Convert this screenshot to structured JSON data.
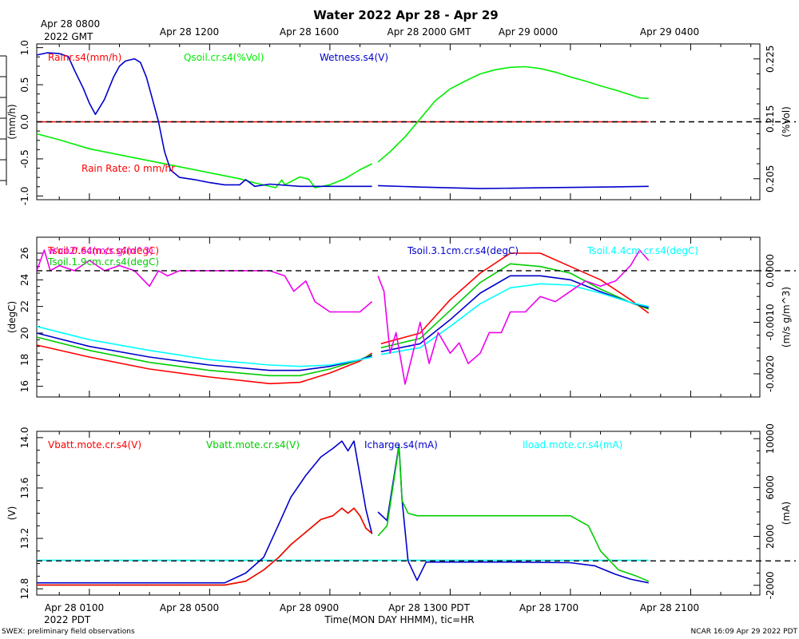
{
  "header": {
    "title": "Water 2022 Apr 28 - Apr 29",
    "gmt_date": "2022 GMT",
    "gmt_ticks": [
      "Apr 28 0800",
      "Apr 28 1200",
      "Apr 28 1600",
      "Apr 28 2000 GMT",
      "Apr 29 0000",
      "Apr 29 0400"
    ]
  },
  "footer": {
    "pdt_date": "2022 PDT",
    "pdt_ticks": [
      "Apr 28 0100",
      "Apr 28 0500",
      "Apr 28 0900",
      "Apr 28 1300 PDT",
      "Apr 28 1700",
      "Apr 28 2100"
    ],
    "xlabel": "Time(MON DAY HHMM), tic=HR",
    "left_note": "SWEX: preliminary field observations",
    "right_note": "NCAR 16:09 Apr 29 2022 PDT"
  },
  "chart_data": [
    {
      "type": "line",
      "panel": "water",
      "x_units": "hours since Apr 28 0000 PDT",
      "xlim": [
        -0.75,
        23.3
      ],
      "left_axis": {
        "label": "(mm/h)",
        "ylim": [
          -1.05,
          1.05
        ],
        "ticks": [
          "1.0",
          "0.5",
          "0.0",
          "-0.5",
          "-1.0"
        ],
        "tick_values": [
          1.0,
          0.5,
          0.0,
          -0.5,
          -1.0
        ]
      },
      "right_axis": {
        "label": "(%Vol)",
        "ylim": [
          0.2015,
          0.2275
        ],
        "ticks": [
          "0.225",
          "0.215",
          "0.205"
        ],
        "tick_values": [
          0.225,
          0.215,
          0.205
        ]
      },
      "legend": [
        "Rainr.s4(mm/h)",
        "Qsoil.cr.s4(%Vol)",
        "Wetness.s4(V)"
      ],
      "annotation": "Rain Rate: 0 mm/hr",
      "reference_line": {
        "axis": "left",
        "value": 0.0
      },
      "series": [
        {
          "name": "Rainr.s4(mm/h)",
          "axis": "left",
          "color": "#ff0000",
          "x": [
            -0.75,
            19.6
          ],
          "y": [
            0.0,
            0.0
          ]
        },
        {
          "name": "Qsoil.cr.s4(%Vol)",
          "axis": "right",
          "color": "#00ee00",
          "x": [
            -0.75,
            0,
            1,
            2,
            3,
            4,
            5,
            6,
            6.5,
            7.2,
            7.4,
            7.5,
            8.0,
            8.3,
            8.5,
            9.0,
            9.5,
            10.0,
            10.4,
            10.6,
            11.0,
            11.5,
            12.0,
            12.5,
            13.0,
            13.5,
            14.0,
            14.5,
            15.0,
            15.5,
            16.0,
            16.5,
            17.0,
            17.5,
            18.0,
            18.5,
            19.0,
            19.3,
            19.6
          ],
          "y": [
            0.2125,
            0.2115,
            0.21,
            0.209,
            0.208,
            0.207,
            0.206,
            0.205,
            0.2043,
            0.2035,
            0.2048,
            0.204,
            0.2053,
            0.2049,
            0.2035,
            0.204,
            0.205,
            0.2065,
            0.2075,
            0.2078,
            0.2095,
            0.212,
            0.215,
            0.218,
            0.22,
            0.2213,
            0.2225,
            0.2232,
            0.2236,
            0.2237,
            0.2234,
            0.2228,
            0.222,
            0.2213,
            0.2205,
            0.2198,
            0.219,
            0.2185,
            0.2184
          ],
          "gap_after_x": 10.4
        },
        {
          "name": "Wetness.s4(V)",
          "axis": "left",
          "color": "#0000cc",
          "x": [
            -0.75,
            -0.4,
            0,
            0.3,
            0.5,
            0.8,
            1.0,
            1.2,
            1.5,
            1.8,
            2.0,
            2.2,
            2.5,
            2.7,
            2.9,
            3.1,
            3.3,
            3.5,
            3.7,
            4.0,
            4.5,
            5.0,
            5.5,
            6.0,
            6.2,
            6.5,
            7.0,
            8.0,
            9.0,
            10.0,
            10.4,
            10.6,
            12.0,
            14.0,
            16.0,
            18.0,
            19.6
          ],
          "y": [
            0.9,
            0.93,
            0.92,
            0.88,
            0.7,
            0.45,
            0.25,
            0.1,
            0.3,
            0.6,
            0.75,
            0.82,
            0.85,
            0.8,
            0.6,
            0.3,
            0.0,
            -0.4,
            -0.65,
            -0.75,
            -0.78,
            -0.82,
            -0.85,
            -0.85,
            -0.78,
            -0.87,
            -0.84,
            -0.87,
            -0.87,
            -0.87,
            -0.87,
            -0.86,
            -0.88,
            -0.9,
            -0.89,
            -0.88,
            -0.87
          ],
          "gap_after_x": 10.4
        }
      ]
    },
    {
      "type": "line",
      "panel": "soil_temperature_flux",
      "x_units": "hours since Apr 28 0000 PDT",
      "xlim": [
        -0.75,
        23.3
      ],
      "left_axis": {
        "label": "(degC)",
        "ylim": [
          15.2,
          27.2
        ],
        "ticks": [
          "26",
          "24",
          "22",
          "20",
          "18",
          "16"
        ],
        "tick_values": [
          26,
          24,
          22,
          20,
          18,
          16
        ]
      },
      "right_axis": {
        "label": "(m/s g/m^3)",
        "ylim": [
          -0.00245,
          0.00065
        ],
        "ticks": [
          "0.0000",
          "-0.0010",
          "-0.0020"
        ],
        "tick_values": [
          0.0,
          -0.001,
          -0.002
        ]
      },
      "legend": [
        "Tsoil.0.6cm.cr.s4(degC)",
        "Tsoil.1.9cm.cr.s4(degC)",
        "Tsoil.3.1cm.cr.s4(degC)",
        "Tsoil.4.4cm.cr.s4(degC)",
        "w'co2'.s4(m/s g/m^3)"
      ],
      "reference_line": {
        "axis": "right",
        "value": 0.0
      },
      "series": [
        {
          "name": "Tsoil.0.6cm.cr.s4(degC)",
          "axis": "left",
          "color": "#ff0000",
          "x": [
            -0.75,
            1,
            3,
            5,
            7,
            8,
            9,
            10,
            10.4,
            10.7,
            12,
            13,
            14,
            15,
            16,
            17,
            18,
            19,
            19.6
          ],
          "y": [
            19.1,
            18.2,
            17.3,
            16.7,
            16.2,
            16.3,
            17.0,
            17.9,
            18.5,
            19.2,
            20.0,
            22.5,
            24.5,
            26.0,
            26.0,
            25.0,
            24.0,
            22.5,
            21.5
          ],
          "gap_after_x": 10.4
        },
        {
          "name": "Tsoil.1.9cm.cr.s4(degC)",
          "axis": "left",
          "color": "#00cc00",
          "x": [
            -0.75,
            1,
            3,
            5,
            7,
            8,
            9,
            10,
            10.4,
            10.7,
            12,
            13,
            14,
            15,
            16,
            17,
            18,
            19,
            19.6
          ],
          "y": [
            19.7,
            18.7,
            17.8,
            17.2,
            16.8,
            16.8,
            17.3,
            18.0,
            18.4,
            18.9,
            19.6,
            21.7,
            23.8,
            25.2,
            25.0,
            24.5,
            23.3,
            22.3,
            21.8
          ],
          "gap_after_x": 10.4
        },
        {
          "name": "Tsoil.3.1cm.cr.s4(degC)",
          "axis": "left",
          "color": "#0000cc",
          "x": [
            -0.75,
            1,
            3,
            5,
            7,
            8,
            9,
            10,
            10.4,
            10.7,
            12,
            13,
            14,
            15,
            16,
            17,
            18,
            19,
            19.6
          ],
          "y": [
            20.0,
            19.0,
            18.2,
            17.6,
            17.2,
            17.2,
            17.5,
            18.0,
            18.3,
            18.6,
            19.2,
            21.0,
            23.0,
            24.3,
            24.3,
            24.0,
            23.1,
            22.3,
            21.9
          ],
          "gap_after_x": 10.4
        },
        {
          "name": "Tsoil.4.4cm.cr.s4(degC)",
          "axis": "left",
          "color": "#00ffff",
          "x": [
            -0.75,
            1,
            3,
            5,
            7,
            8,
            9,
            10,
            10.4,
            10.7,
            12,
            13,
            14,
            15,
            16,
            17,
            18,
            19,
            19.6
          ],
          "y": [
            20.5,
            19.5,
            18.7,
            18.0,
            17.6,
            17.5,
            17.6,
            18.0,
            18.2,
            18.4,
            18.9,
            20.5,
            22.2,
            23.4,
            23.7,
            23.6,
            23.0,
            22.3,
            22.0
          ],
          "gap_after_x": 10.4
        },
        {
          "name": "w'co2'.s4(m/s g/m^3)",
          "axis": "right",
          "color": "#ee00ee",
          "x": [
            -0.75,
            -0.5,
            -0.3,
            0,
            0.5,
            1,
            1.5,
            2,
            2.5,
            3,
            3.3,
            3.6,
            4,
            4.3,
            4.5,
            4.9,
            5.2,
            5.5,
            6,
            6.5,
            7,
            7.5,
            7.8,
            8.2,
            8.5,
            9,
            9.5,
            10,
            10.4,
            10.6,
            10.8,
            11.0,
            11.2,
            11.5,
            11.8,
            12.0,
            12.3,
            12.6,
            13.0,
            13.3,
            13.6,
            14.0,
            14.3,
            14.7,
            15.0,
            15.5,
            16.0,
            16.5,
            17.0,
            17.5,
            18.0,
            18.5,
            19.0,
            19.3,
            19.6
          ],
          "y": [
            0.0,
            0.0004,
            0.0,
            0.0001,
            0.0,
            0.0002,
            0.0,
            0.0001,
            0.0,
            -0.0003,
            0.0,
            -0.0001,
            0.0,
            0.0,
            0.0,
            0.0,
            0.0,
            0.0,
            0.0,
            0.0,
            0.0,
            -0.0001,
            -0.0004,
            -0.0002,
            -0.0006,
            -0.0008,
            -0.0008,
            -0.0008,
            -0.0006,
            -0.0001,
            -0.0004,
            -0.0016,
            -0.0012,
            -0.0022,
            -0.0015,
            -0.001,
            -0.0018,
            -0.0012,
            -0.0016,
            -0.0014,
            -0.0018,
            -0.0016,
            -0.0012,
            -0.0012,
            -0.0008,
            -0.0008,
            -0.0005,
            -0.0006,
            -0.0004,
            -0.0002,
            -0.0003,
            -0.0002,
            0.0001,
            0.0004,
            0.0002
          ],
          "gap_after_x": 10.4
        }
      ]
    },
    {
      "type": "line",
      "panel": "power",
      "x_units": "hours since Apr 28 0000 PDT",
      "xlim": [
        -0.75,
        23.3
      ],
      "left_axis": {
        "label": "(V)",
        "ylim": [
          12.75,
          14.05
        ],
        "ticks": [
          "14.0",
          "13.6",
          "13.2",
          "12.8"
        ],
        "tick_values": [
          14.0,
          13.6,
          13.2,
          12.8
        ]
      },
      "right_axis": {
        "label": "(mA)",
        "ylim": [
          -2800,
          10600
        ],
        "ticks": [
          "10000",
          "6000",
          "2000",
          "-2000"
        ],
        "tick_values": [
          10000,
          6000,
          2000,
          -2000
        ]
      },
      "legend": [
        "Vbatt.mote.cr.s4(V)",
        "Vbatt.mote.cr.s4(V)",
        "Icharge.s4(mA)",
        "Iload.mote.cr.s4(mA)"
      ],
      "reference_line": {
        "axis": "right",
        "value": 0
      },
      "series": [
        {
          "name": "Iload.mote.cr.s4(mA)",
          "axis": "right",
          "color": "#00ffff",
          "x": [
            -0.75,
            19.6
          ],
          "y": [
            50,
            50
          ]
        },
        {
          "name": "Icharge.s4(mA)",
          "axis": "right",
          "color": "#0000cc",
          "x": [
            -0.75,
            2,
            4,
            5.5,
            6.2,
            6.8,
            7.3,
            7.7,
            8.2,
            8.7,
            9.1,
            9.4,
            9.6,
            9.8,
            10.0,
            10.2,
            10.4,
            10.6,
            10.9,
            11.3,
            11.4,
            11.6,
            11.9,
            12.2,
            13,
            15,
            17,
            17.8,
            18.5,
            19.0,
            19.6
          ],
          "y": [
            -1800,
            -1800,
            -1800,
            -1800,
            -1000,
            300,
            3000,
            5200,
            7000,
            8500,
            9200,
            9800,
            9000,
            9800,
            7000,
            4200,
            2200,
            4000,
            3300,
            9500,
            5000,
            0,
            -1600,
            -100,
            -100,
            -100,
            -150,
            -400,
            -1100,
            -1500,
            -1800
          ],
          "gap_after_x": 10.4
        },
        {
          "name": "Vbatt.mote.cr.s4(V)",
          "axis": "left",
          "color": "#00cc00",
          "x": [
            -0.75,
            2,
            4,
            5.5,
            6.2,
            6.8,
            7.3,
            7.7,
            8.2,
            8.7,
            9.1,
            9.4,
            9.6,
            9.8,
            10.0,
            10.2,
            10.4,
            10.6,
            10.9,
            11.3,
            11.4,
            11.6,
            11.9,
            12.2,
            13,
            15,
            16,
            17,
            17.6,
            18.0,
            18.6,
            19.2,
            19.6
          ],
          "y": [
            12.83,
            12.83,
            12.83,
            12.83,
            12.86,
            12.95,
            13.05,
            13.15,
            13.25,
            13.35,
            13.38,
            13.44,
            13.4,
            13.44,
            13.38,
            13.28,
            13.24,
            13.22,
            13.3,
            13.93,
            13.5,
            13.4,
            13.38,
            13.38,
            13.38,
            13.38,
            13.38,
            13.38,
            13.3,
            13.1,
            12.95,
            12.9,
            12.86
          ],
          "gap_after_x": 10.4
        },
        {
          "name": "Vbatt.mote.cr.s4(V)",
          "axis": "left",
          "color": "#ff0000",
          "x": [
            -0.75,
            2,
            4,
            5.5,
            6.2,
            6.8,
            7.3,
            7.7,
            8.2,
            8.7,
            9.1,
            9.4,
            9.6,
            9.8,
            10.0,
            10.2,
            10.4
          ],
          "y": [
            12.83,
            12.83,
            12.83,
            12.83,
            12.86,
            12.95,
            13.05,
            13.15,
            13.25,
            13.35,
            13.38,
            13.44,
            13.4,
            13.44,
            13.38,
            13.28,
            13.24
          ]
        }
      ]
    }
  ]
}
